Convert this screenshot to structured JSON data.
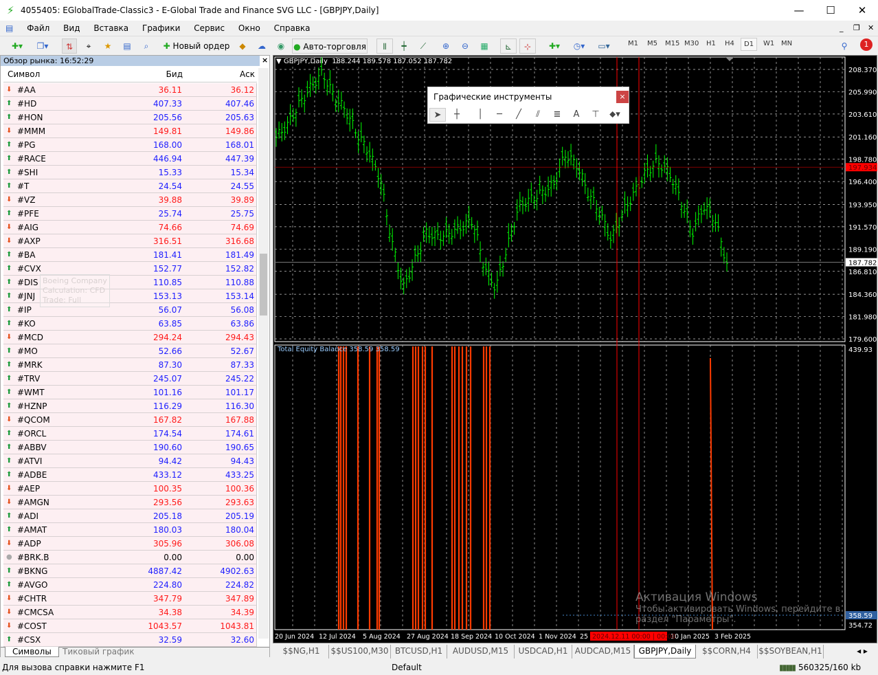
{
  "window": {
    "title": "4055405: EGlobalTrade-Classic3 - E-Global Trade and Finance SVG LLC - [GBPJPY,Daily]",
    "minimize": "—",
    "maximize": "☐",
    "close": "✕"
  },
  "menu": [
    "Файл",
    "Вид",
    "Вставка",
    "Графики",
    "Сервис",
    "Окно",
    "Справка"
  ],
  "toolbar": {
    "new_order": "Новый ордер",
    "autotrading": "Авто-торговля",
    "timeframes": [
      "M1",
      "M5",
      "M15",
      "M30",
      "H1",
      "H4",
      "D1",
      "W1",
      "MN"
    ],
    "active_timeframe": "D1",
    "notifications": "1"
  },
  "market_watch": {
    "title": "Обзор рынка: 16:52:29",
    "columns": [
      "Символ",
      "Бид",
      "Аск"
    ],
    "rows": [
      {
        "s": "#AA",
        "b": "36.11",
        "a": "36.12",
        "d": "down"
      },
      {
        "s": "#HD",
        "b": "407.33",
        "a": "407.46",
        "d": "up"
      },
      {
        "s": "#HON",
        "b": "205.56",
        "a": "205.63",
        "d": "up"
      },
      {
        "s": "#MMM",
        "b": "149.81",
        "a": "149.86",
        "d": "down"
      },
      {
        "s": "#PG",
        "b": "168.00",
        "a": "168.01",
        "d": "up"
      },
      {
        "s": "#RACE",
        "b": "446.94",
        "a": "447.39",
        "d": "up"
      },
      {
        "s": "#SHI",
        "b": "15.33",
        "a": "15.34",
        "d": "up"
      },
      {
        "s": "#T",
        "b": "24.54",
        "a": "24.55",
        "d": "up"
      },
      {
        "s": "#VZ",
        "b": "39.88",
        "a": "39.89",
        "d": "down"
      },
      {
        "s": "#PFE",
        "b": "25.74",
        "a": "25.75",
        "d": "up"
      },
      {
        "s": "#AIG",
        "b": "74.66",
        "a": "74.69",
        "d": "down"
      },
      {
        "s": "#AXP",
        "b": "316.51",
        "a": "316.68",
        "d": "down"
      },
      {
        "s": "#BA",
        "b": "181.41",
        "a": "181.49",
        "d": "up"
      },
      {
        "s": "#CVX",
        "b": "152.77",
        "a": "152.82",
        "d": "up"
      },
      {
        "s": "#DIS",
        "b": "110.85",
        "a": "110.88",
        "d": "up"
      },
      {
        "s": "#JNJ",
        "b": "153.13",
        "a": "153.14",
        "d": "up"
      },
      {
        "s": "#IP",
        "b": "56.07",
        "a": "56.08",
        "d": "up"
      },
      {
        "s": "#KO",
        "b": "63.85",
        "a": "63.86",
        "d": "up"
      },
      {
        "s": "#MCD",
        "b": "294.24",
        "a": "294.43",
        "d": "down"
      },
      {
        "s": "#MO",
        "b": "52.66",
        "a": "52.67",
        "d": "up"
      },
      {
        "s": "#MRK",
        "b": "87.30",
        "a": "87.33",
        "d": "up"
      },
      {
        "s": "#TRV",
        "b": "245.07",
        "a": "245.22",
        "d": "up"
      },
      {
        "s": "#WMT",
        "b": "101.16",
        "a": "101.17",
        "d": "up"
      },
      {
        "s": "#HZNP",
        "b": "116.29",
        "a": "116.30",
        "d": "up"
      },
      {
        "s": "#QCOM",
        "b": "167.82",
        "a": "167.88",
        "d": "down"
      },
      {
        "s": "#ORCL",
        "b": "174.54",
        "a": "174.61",
        "d": "up"
      },
      {
        "s": "#ABBV",
        "b": "190.60",
        "a": "190.65",
        "d": "up"
      },
      {
        "s": "#ATVI",
        "b": "94.42",
        "a": "94.43",
        "d": "up"
      },
      {
        "s": "#ADBE",
        "b": "433.12",
        "a": "433.25",
        "d": "up"
      },
      {
        "s": "#AEP",
        "b": "100.35",
        "a": "100.36",
        "d": "down"
      },
      {
        "s": "#AMGN",
        "b": "293.56",
        "a": "293.63",
        "d": "down"
      },
      {
        "s": "#ADI",
        "b": "205.18",
        "a": "205.19",
        "d": "up"
      },
      {
        "s": "#AMAT",
        "b": "180.03",
        "a": "180.04",
        "d": "up"
      },
      {
        "s": "#ADP",
        "b": "305.96",
        "a": "306.08",
        "d": "down"
      },
      {
        "s": "#BRK.B",
        "b": "0.00",
        "a": "0.00",
        "d": "none"
      },
      {
        "s": "#BKNG",
        "b": "4887.42",
        "a": "4902.63",
        "d": "up"
      },
      {
        "s": "#AVGO",
        "b": "224.80",
        "a": "224.82",
        "d": "up"
      },
      {
        "s": "#CHTR",
        "b": "347.79",
        "a": "347.89",
        "d": "down"
      },
      {
        "s": "#CMCSA",
        "b": "34.38",
        "a": "34.39",
        "d": "down"
      },
      {
        "s": "#COST",
        "b": "1043.57",
        "a": "1043.81",
        "d": "down"
      },
      {
        "s": "#CSX",
        "b": "32.59",
        "a": "32.60",
        "d": "up"
      }
    ],
    "tooltip": [
      "Boeing Company",
      "Calculation: CFD",
      "Trade: Full"
    ],
    "tabs": [
      "Символы",
      "Тиковый график"
    ]
  },
  "chart": {
    "header": "GBPJPY,Daily  188.244 189.578 187.052 187.782",
    "price_ticks": [
      "208.370",
      "205.990",
      "203.610",
      "201.160",
      "198.780",
      "196.400",
      "193.950",
      "191.570",
      "189.190",
      "186.810",
      "184.360",
      "181.980",
      "179.600"
    ],
    "price_range": [
      179.6,
      208.37
    ],
    "bid_label": "187.782",
    "ask_label": "197.934",
    "approx_closes": [
      201.1,
      202.5,
      204.7,
      206.5,
      208.0,
      205.5,
      204,
      201.5,
      199.6,
      196.7,
      190,
      185,
      188,
      190.9,
      190.5,
      190.9,
      191.5,
      192.3,
      187.3,
      185,
      189.4,
      193.8,
      194.5,
      195.2,
      196,
      199.3,
      198.2,
      195.2,
      193.1,
      190.2,
      193.1,
      195.2,
      197.4,
      198.5,
      197.4,
      194.5,
      190.9,
      193.8,
      192.3,
      187.6
    ],
    "indicator": {
      "label": "Total Equity Balance 358.59 358.59",
      "ticks": [
        "439.93",
        "358.59",
        "354.72"
      ]
    },
    "time_labels": [
      "20 Jun 2024",
      "12 Jul 2024",
      "5 Aug 2024",
      "27 Aug 2024",
      "18 Sep 2024",
      "10 Oct 2024",
      "1 Nov 2024",
      "25",
      "10 Jan 2025",
      "3 Feb 2025"
    ],
    "crosshair_time": "2024.12.11 00:00 | 00:00",
    "watermark": [
      "Активация Windows",
      "Чтобы активировать Windows, перейдите в",
      "раздел \"Параметры\"."
    ],
    "colors": {
      "bull": "#00ff00",
      "grid": "#c8c8c8",
      "marker": "#ff3b00",
      "vline": "#ff0000"
    }
  },
  "graphic_tools": {
    "title": "Графические инструменты",
    "close": "×"
  },
  "chart_tabs": [
    "$$NG,H1",
    "$$US100,M30",
    "BTCUSD,H1",
    "AUDUSD,M15",
    "USDCAD,H1",
    "AUDCAD,M15",
    "GBPJPY,Daily",
    "$$CORN,H4",
    "$$SOYBEAN,H1"
  ],
  "active_chart_tab": "GBPJPY,Daily",
  "status": {
    "help": "Для вызова справки нажмите F1",
    "profile": "Default",
    "traffic": "560325/160 kb"
  }
}
